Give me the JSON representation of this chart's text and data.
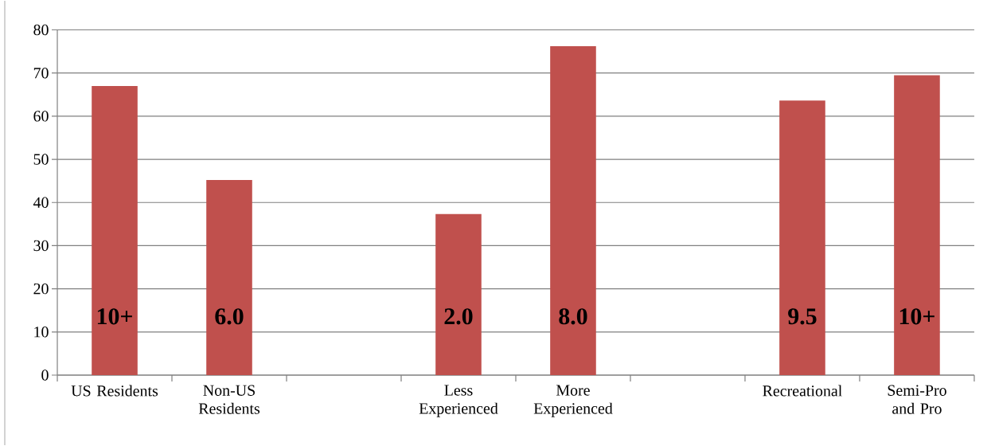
{
  "chart_data": {
    "type": "bar",
    "categories": [
      "US Residents",
      "Non-US Residents",
      null,
      "Less Experienced",
      "More Experienced",
      null,
      "Recreational",
      "Semi-Pro and Pro"
    ],
    "values": [
      67,
      45.2,
      null,
      37.3,
      76.2,
      null,
      63.6,
      69.5
    ],
    "color": "#c0504d",
    "ylim": [
      0,
      80
    ],
    "yticks": [
      0,
      10,
      20,
      30,
      40,
      50,
      60,
      70,
      80
    ],
    "grid": "y",
    "annotations": [
      "10+",
      "6.0",
      "2.0",
      "8.0",
      "9.5",
      "10+"
    ]
  }
}
